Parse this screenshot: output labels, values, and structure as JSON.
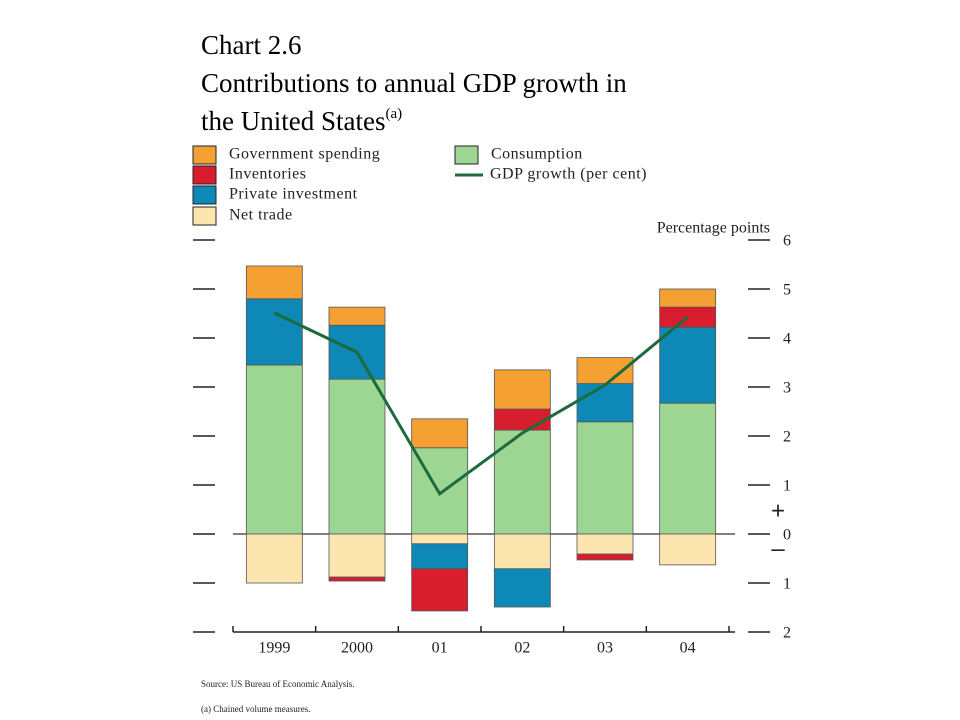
{
  "chart_data": {
    "type": "bar",
    "title": "Chart 2.6",
    "subtitle": [
      "Contributions to annual GDP growth in",
      "the United States"
    ],
    "title_footnote_marker": "(a)",
    "y_axis_label": "Percentage points",
    "sign_labels": [
      "+",
      "–"
    ],
    "source": "Source:  US Bureau of Economic Analysis.",
    "footnote": "(a)  Chained volume measures.",
    "stacked": true,
    "categories": [
      "1999",
      "2000",
      "01",
      "02",
      "03",
      "04"
    ],
    "series": [
      {
        "name": "Government spending",
        "color": "#f5a033",
        "values": [
          0.67,
          0.37,
          0.59,
          0.8,
          0.53,
          0.37
        ]
      },
      {
        "name": "Inventories",
        "color": "#d81e2e",
        "values": [
          0,
          -0.08,
          -0.86,
          0.43,
          -0.12,
          0.41
        ]
      },
      {
        "name": "Private investment",
        "color": "#0e88b6",
        "values": [
          1.35,
          1.1,
          -0.51,
          -0.78,
          0.78,
          1.55
        ]
      },
      {
        "name": "Net trade",
        "color": "#fde5b0",
        "values": [
          -1.0,
          -0.88,
          -0.2,
          -0.71,
          -0.41,
          -0.63
        ]
      },
      {
        "name": "Consumption",
        "color": "#9dd593",
        "values": [
          3.45,
          3.16,
          1.76,
          2.12,
          2.29,
          2.67
        ]
      },
      {
        "name": "GDP growth (per cent)",
        "type": "line",
        "color": "#1d6a3c",
        "values": [
          4.51,
          3.71,
          0.82,
          2.06,
          3.04,
          4.43
        ]
      }
    ],
    "ylim": [
      -2,
      6
    ],
    "yticks": [
      6,
      5,
      4,
      3,
      2,
      1,
      0,
      {
        "value": -1,
        "label": "1"
      },
      {
        "value": -2,
        "label": "2"
      }
    ]
  }
}
